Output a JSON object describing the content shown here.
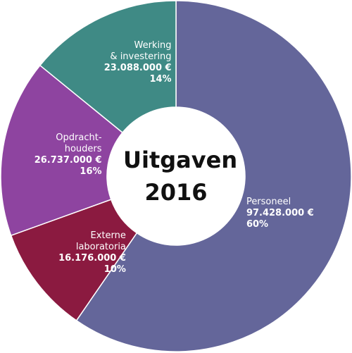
{
  "chart_data": {
    "type": "donut",
    "title": "Uitgaven 2016",
    "categories": [
      "Personeel",
      "Externe\nlaboratoria",
      "Opdracht-\nhouders",
      "Werking\n& investering"
    ],
    "values": [
      97428000,
      16176000,
      26737000,
      23088000
    ],
    "value_labels": [
      "97.428.000 €",
      "16.176.000 €",
      "26.737.000 €",
      "23.088.000 €"
    ],
    "percent_labels": [
      "60%",
      "10%",
      "16%",
      "14%"
    ],
    "colors": [
      "#64669a",
      "#8b1a40",
      "#8e44a0",
      "#3f8a85"
    ]
  }
}
